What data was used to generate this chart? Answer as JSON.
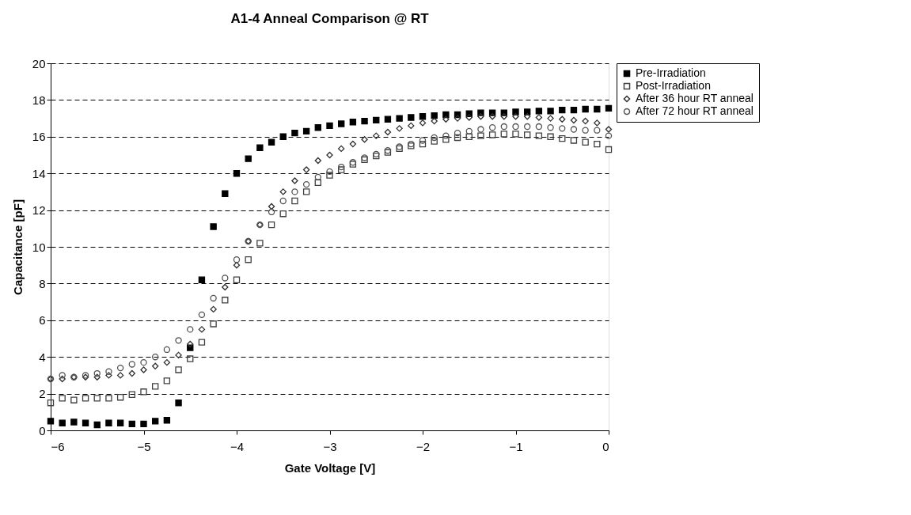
{
  "chart_data": {
    "type": "scatter",
    "title": "A1-4 Anneal Comparison @ RT",
    "xlabel": "Gate Voltage [V]",
    "ylabel": "Capacitance [pF]",
    "x": [
      -6,
      -5.875,
      -5.75,
      -5.625,
      -5.5,
      -5.375,
      -5.25,
      -5.125,
      -5,
      -4.875,
      -4.75,
      -4.625,
      -4.5,
      -4.375,
      -4.25,
      -4.125,
      -4,
      -3.875,
      -3.75,
      -3.625,
      -3.5,
      -3.375,
      -3.25,
      -3.125,
      -3,
      -2.875,
      -2.75,
      -2.625,
      -2.5,
      -2.375,
      -2.25,
      -2.125,
      -2,
      -1.875,
      -1.75,
      -1.625,
      -1.5,
      -1.375,
      -1.25,
      -1.125,
      -1,
      -0.875,
      -0.75,
      -0.625,
      -0.5,
      -0.375,
      -0.25,
      -0.125,
      0
    ],
    "series": [
      {
        "name": "Pre-Irradiation",
        "color": "#000000",
        "marker": "square",
        "values": [
          0.5,
          0.4,
          0.45,
          0.4,
          0.3,
          0.4,
          0.4,
          0.35,
          0.35,
          0.5,
          0.55,
          1.5,
          4.5,
          8.2,
          11.1,
          12.9,
          14.0,
          14.8,
          15.4,
          15.7,
          16.0,
          16.2,
          16.3,
          16.5,
          16.6,
          16.7,
          16.8,
          16.85,
          16.9,
          16.95,
          17.0,
          17.05,
          17.1,
          17.15,
          17.2,
          17.2,
          17.25,
          17.3,
          17.3,
          17.3,
          17.35,
          17.35,
          17.4,
          17.4,
          17.45,
          17.45,
          17.5,
          17.5,
          17.55
        ]
      },
      {
        "name": "Post-Irradiation",
        "color": "#404040",
        "marker": "square",
        "values": [
          1.5,
          1.75,
          1.65,
          1.75,
          1.75,
          1.75,
          1.8,
          1.95,
          2.1,
          2.4,
          2.7,
          3.3,
          3.9,
          4.8,
          5.8,
          7.1,
          8.2,
          9.3,
          10.2,
          11.2,
          11.8,
          12.5,
          13.0,
          13.5,
          13.9,
          14.2,
          14.5,
          14.75,
          14.95,
          15.15,
          15.35,
          15.5,
          15.6,
          15.75,
          15.85,
          15.95,
          16.0,
          16.05,
          16.1,
          16.15,
          16.15,
          16.1,
          16.05,
          16.0,
          15.9,
          15.8,
          15.7,
          15.6,
          15.3
        ]
      },
      {
        "name": "After 36 hour RT anneal",
        "color": "#303030",
        "marker": "diamond",
        "values": [
          2.8,
          2.8,
          2.9,
          2.9,
          2.9,
          3.0,
          3.0,
          3.1,
          3.3,
          3.5,
          3.7,
          4.1,
          4.7,
          5.5,
          6.6,
          7.8,
          9.0,
          10.3,
          11.2,
          12.2,
          13.0,
          13.6,
          14.2,
          14.7,
          15.0,
          15.35,
          15.6,
          15.85,
          16.05,
          16.25,
          16.45,
          16.6,
          16.75,
          16.85,
          16.95,
          17.0,
          17.05,
          17.1,
          17.1,
          17.1,
          17.1,
          17.1,
          17.05,
          17.0,
          16.95,
          16.9,
          16.85,
          16.75,
          16.4
        ]
      },
      {
        "name": "After 72 hour RT anneal",
        "color": "#505050",
        "marker": "circle",
        "values": [
          2.8,
          3.0,
          2.9,
          3.0,
          3.1,
          3.2,
          3.4,
          3.6,
          3.7,
          4.0,
          4.4,
          4.9,
          5.5,
          6.3,
          7.2,
          8.3,
          9.3,
          10.3,
          11.2,
          11.9,
          12.5,
          13.0,
          13.4,
          13.8,
          14.1,
          14.35,
          14.6,
          14.85,
          15.05,
          15.25,
          15.45,
          15.6,
          15.8,
          15.95,
          16.05,
          16.2,
          16.3,
          16.4,
          16.5,
          16.55,
          16.55,
          16.55,
          16.55,
          16.5,
          16.45,
          16.4,
          16.35,
          16.35,
          16.05
        ]
      }
    ],
    "xlim": [
      -6,
      0
    ],
    "xticks": [
      -6,
      -5,
      -4,
      -3,
      -2,
      -1,
      0
    ],
    "ylim": [
      0,
      20
    ],
    "yticks": [
      0,
      2,
      4,
      6,
      8,
      10,
      12,
      14,
      16,
      18,
      20
    ],
    "grid": "y",
    "legend": "right"
  }
}
